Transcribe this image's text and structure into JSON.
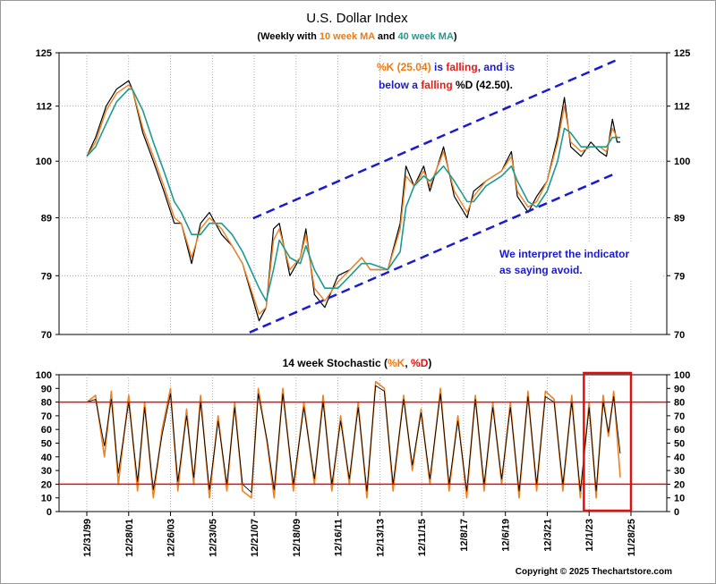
{
  "chart_data": [
    {
      "type": "line",
      "title": "U.S. Dollar Index",
      "subtitle": {
        "prefix": "(Weekly with ",
        "ma10": "10 week MA",
        "mid": " and ",
        "ma40": "40 week MA",
        "suffix": ")"
      },
      "y_scale": "log",
      "ylim": [
        70,
        125
      ],
      "y_ticks": [
        70,
        79,
        89,
        100,
        112,
        125
      ],
      "series": [
        {
          "role": "price",
          "color": "#000000",
          "x": [
            "1999-12-31",
            "2000-06-01",
            "2000-12-01",
            "2001-06-01",
            "2001-12-28",
            "2002-03-01",
            "2002-09-01",
            "2003-03-01",
            "2003-09-01",
            "2004-03-01",
            "2004-07-01",
            "2004-12-26",
            "2005-06-01",
            "2005-11-01",
            "2006-06-01",
            "2006-12-01",
            "2007-06-01",
            "2008-03-15",
            "2008-07-15",
            "2008-11-20",
            "2009-03-01",
            "2009-09-01",
            "2010-03-01",
            "2010-06-07",
            "2010-11-01",
            "2011-05-01",
            "2011-12-16",
            "2012-07-15",
            "2013-02-01",
            "2013-07-01",
            "2014-05-01",
            "2014-12-01",
            "2015-03-13",
            "2015-08-01",
            "2016-01-15",
            "2016-05-01",
            "2016-12-25",
            "2017-07-01",
            "2018-02-10",
            "2018-06-01",
            "2019-01-01",
            "2019-09-30",
            "2020-03-20",
            "2020-07-01",
            "2021-01-05",
            "2021-06-01",
            "2021-12-01",
            "2022-06-01",
            "2022-09-27",
            "2023-01-15",
            "2023-07-15",
            "2024-01-01",
            "2024-06-01",
            "2024-09-27",
            "2025-01-10",
            "2025-04-01",
            "2025-05-25"
          ],
          "values": [
            101,
            105,
            112,
            116,
            118,
            116,
            106,
            100,
            94,
            88,
            88,
            81,
            88,
            90,
            86,
            84,
            81,
            72,
            74,
            87,
            88,
            79,
            82,
            87,
            76,
            74,
            79,
            80,
            82,
            80,
            80,
            88,
            99,
            95,
            99,
            94,
            103,
            93,
            89,
            94,
            96,
            98,
            102,
            93,
            90,
            93,
            96,
            105,
            114,
            103,
            101,
            104,
            102,
            101,
            109,
            104,
            104
          ]
        },
        {
          "role": "ma10",
          "color": "#f08020",
          "x": [
            "1999-12-31",
            "2000-06-01",
            "2000-12-01",
            "2001-06-01",
            "2001-12-28",
            "2002-03-01",
            "2002-09-01",
            "2003-03-01",
            "2003-09-01",
            "2004-03-01",
            "2004-07-01",
            "2004-12-26",
            "2005-06-01",
            "2005-11-01",
            "2006-06-01",
            "2006-12-01",
            "2007-06-01",
            "2008-03-15",
            "2008-07-15",
            "2008-11-20",
            "2009-03-01",
            "2009-09-01",
            "2010-03-01",
            "2010-06-07",
            "2010-11-01",
            "2011-05-01",
            "2011-12-16",
            "2012-07-15",
            "2013-02-01",
            "2013-07-01",
            "2014-05-01",
            "2014-12-01",
            "2015-03-13",
            "2015-08-01",
            "2016-01-15",
            "2016-05-01",
            "2016-12-25",
            "2017-07-01",
            "2018-02-10",
            "2018-06-01",
            "2019-01-01",
            "2019-09-30",
            "2020-03-20",
            "2020-07-01",
            "2021-01-05",
            "2021-06-01",
            "2021-12-01",
            "2022-06-01",
            "2022-09-27",
            "2023-01-15",
            "2023-07-15",
            "2024-01-01",
            "2024-06-01",
            "2024-09-27",
            "2025-01-10",
            "2025-04-01",
            "2025-05-25"
          ],
          "values": [
            101,
            104,
            111,
            115,
            117,
            116,
            107,
            101,
            95,
            89,
            88,
            82,
            87,
            89,
            87,
            84,
            81,
            73,
            74,
            85,
            87,
            80,
            82,
            86,
            77,
            75,
            78,
            80,
            82,
            80,
            80,
            87,
            97,
            95,
            98,
            95,
            102,
            94,
            90,
            93,
            96,
            98,
            101,
            94,
            91,
            92,
            96,
            104,
            112,
            104,
            102,
            103,
            103,
            102,
            107,
            105,
            105
          ]
        },
        {
          "role": "ma40",
          "color": "#1f9a8f",
          "x": [
            "1999-12-31",
            "2000-06-01",
            "2000-12-01",
            "2001-06-01",
            "2001-12-28",
            "2002-03-01",
            "2002-09-01",
            "2003-03-01",
            "2003-09-01",
            "2004-03-01",
            "2004-07-01",
            "2004-12-26",
            "2005-06-01",
            "2005-11-01",
            "2006-06-01",
            "2006-12-01",
            "2007-06-01",
            "2008-03-15",
            "2008-07-15",
            "2008-11-20",
            "2009-03-01",
            "2009-09-01",
            "2010-03-01",
            "2010-06-07",
            "2010-11-01",
            "2011-05-01",
            "2011-12-16",
            "2012-07-15",
            "2013-02-01",
            "2013-07-01",
            "2014-05-01",
            "2014-12-01",
            "2015-03-13",
            "2015-08-01",
            "2016-01-15",
            "2016-05-01",
            "2016-12-25",
            "2017-07-01",
            "2018-02-10",
            "2018-06-01",
            "2019-01-01",
            "2019-09-30",
            "2020-03-20",
            "2020-07-01",
            "2021-01-05",
            "2021-06-01",
            "2021-12-01",
            "2022-06-01",
            "2022-09-27",
            "2023-01-15",
            "2023-07-15",
            "2024-01-01",
            "2024-06-01",
            "2024-09-27",
            "2025-01-10",
            "2025-04-01",
            "2025-05-25"
          ],
          "values": [
            101,
            103,
            108,
            113,
            116,
            116,
            111,
            104,
            98,
            92,
            90,
            86,
            86,
            88,
            88,
            86,
            83,
            77,
            75,
            80,
            85,
            82,
            81,
            84,
            80,
            77,
            77,
            79,
            81,
            81,
            80,
            83,
            91,
            95,
            97,
            96,
            99,
            96,
            92,
            92,
            95,
            97,
            99,
            96,
            92,
            91,
            94,
            100,
            107,
            106,
            103,
            103,
            103,
            103,
            105,
            105,
            105
          ]
        }
      ],
      "trend_lines": [
        {
          "x": [
            "2007-10-01",
            "2025-03-01"
          ],
          "values": [
            70.3,
            97.5
          ]
        },
        {
          "x": [
            "2007-12-01",
            "2025-03-01"
          ],
          "values": [
            88.9,
            123
          ]
        }
      ],
      "annotations": {
        "note1_line1": [
          {
            "text": "%K (25.04)",
            "color": "#f07a10"
          },
          {
            "text": " is ",
            "color": "#1a1ad0"
          },
          {
            "text": "falling",
            "color": "#e0201a"
          },
          {
            "text": ", and is",
            "color": "#1a1ad0"
          }
        ],
        "note1_line2": [
          {
            "text": "below a ",
            "color": "#1a1ad0"
          },
          {
            "text": "falling",
            "color": "#e0201a"
          },
          {
            "text": " %D (42.50).",
            "color": "#000000"
          }
        ],
        "note2_line1": "We interpret the indicator",
        "note2_line2": "as saying avoid."
      }
    },
    {
      "type": "line",
      "title": {
        "prefix": "14 week Stochastic (",
        "k": "%K",
        "sep": ", ",
        "d": "%D",
        "suffix": ")"
      },
      "ylim": [
        0,
        100
      ],
      "y_ticks": [
        0,
        10,
        20,
        30,
        40,
        50,
        60,
        70,
        80,
        90,
        100
      ],
      "reference_lines": [
        20,
        80
      ],
      "reference_color": "#e01010",
      "highlight_box_x": [
        "2023-09-01",
        "2025-11-28"
      ],
      "highlight_color": "#e01010",
      "series": [
        {
          "role": "k",
          "color": "#f08020",
          "x": [
            "1999-12-31",
            "2000-06-01",
            "2000-11-01",
            "2001-03-01",
            "2001-07-01",
            "2001-12-28",
            "2002-06-01",
            "2002-10-01",
            "2003-03-01",
            "2003-08-01",
            "2003-12-26",
            "2004-05-01",
            "2004-10-01",
            "2005-02-01",
            "2005-06-01",
            "2005-11-01",
            "2006-04-01",
            "2006-09-01",
            "2007-01-15",
            "2007-06-01",
            "2007-11-01",
            "2008-03-01",
            "2008-08-01",
            "2008-12-01",
            "2009-05-01",
            "2009-11-01",
            "2010-05-01",
            "2010-11-01",
            "2011-04-01",
            "2011-09-01",
            "2012-02-01",
            "2012-07-01",
            "2012-12-01",
            "2013-05-01",
            "2013-10-01",
            "2014-03-01",
            "2014-08-01",
            "2015-02-01",
            "2015-07-01",
            "2015-12-01",
            "2016-05-01",
            "2016-11-01",
            "2017-04-01",
            "2017-09-01",
            "2018-02-01",
            "2018-07-01",
            "2018-12-01",
            "2019-05-01",
            "2019-10-01",
            "2020-03-01",
            "2020-08-01",
            "2021-01-01",
            "2021-06-01",
            "2021-11-01",
            "2022-04-01",
            "2022-09-01",
            "2023-02-01",
            "2023-07-01",
            "2023-12-01",
            "2024-04-01",
            "2024-08-01",
            "2024-11-01",
            "2025-02-01",
            "2025-05-25"
          ],
          "values": [
            80,
            85,
            40,
            88,
            20,
            85,
            15,
            80,
            10,
            60,
            90,
            15,
            75,
            20,
            85,
            10,
            70,
            15,
            80,
            15,
            10,
            90,
            50,
            10,
            90,
            15,
            80,
            20,
            85,
            15,
            70,
            20,
            80,
            10,
            95,
            90,
            15,
            85,
            30,
            75,
            20,
            90,
            15,
            70,
            10,
            85,
            15,
            80,
            20,
            80,
            10,
            88,
            15,
            88,
            82,
            15,
            85,
            10,
            80,
            10,
            85,
            55,
            88,
            25
          ]
        },
        {
          "role": "d",
          "color": "#000000",
          "x": [
            "1999-12-31",
            "2000-06-01",
            "2000-11-01",
            "2001-03-01",
            "2001-07-01",
            "2001-12-28",
            "2002-06-01",
            "2002-10-01",
            "2003-03-01",
            "2003-08-01",
            "2003-12-26",
            "2004-05-01",
            "2004-10-01",
            "2005-02-01",
            "2005-06-01",
            "2005-11-01",
            "2006-04-01",
            "2006-09-01",
            "2007-01-15",
            "2007-06-01",
            "2007-11-01",
            "2008-03-01",
            "2008-08-01",
            "2008-12-01",
            "2009-05-01",
            "2009-11-01",
            "2010-05-01",
            "2010-11-01",
            "2011-04-01",
            "2011-09-01",
            "2012-02-01",
            "2012-07-01",
            "2012-12-01",
            "2013-05-01",
            "2013-10-01",
            "2014-03-01",
            "2014-08-01",
            "2015-02-01",
            "2015-07-01",
            "2015-12-01",
            "2016-05-01",
            "2016-11-01",
            "2017-04-01",
            "2017-09-01",
            "2018-02-01",
            "2018-07-01",
            "2018-12-01",
            "2019-05-01",
            "2019-10-01",
            "2020-03-01",
            "2020-08-01",
            "2021-01-01",
            "2021-06-01",
            "2021-11-01",
            "2022-04-01",
            "2022-09-01",
            "2023-02-01",
            "2023-07-01",
            "2023-12-01",
            "2024-04-01",
            "2024-08-01",
            "2024-11-01",
            "2025-02-01",
            "2025-05-25"
          ],
          "values": [
            80,
            82,
            48,
            82,
            28,
            80,
            22,
            76,
            16,
            56,
            86,
            22,
            70,
            25,
            80,
            16,
            66,
            20,
            76,
            20,
            14,
            86,
            52,
            16,
            86,
            20,
            76,
            24,
            80,
            20,
            66,
            24,
            76,
            15,
            92,
            88,
            20,
            82,
            34,
            72,
            24,
            86,
            20,
            66,
            15,
            82,
            20,
            76,
            24,
            76,
            15,
            84,
            20,
            84,
            80,
            20,
            80,
            15,
            76,
            15,
            80,
            58,
            84,
            42.5
          ]
        }
      ]
    }
  ],
  "x_axis": {
    "tick_labels": [
      "12/31/99",
      "12/28/01",
      "12/26/03",
      "12/23/05",
      "12/21/07",
      "12/18/09",
      "12/16/11",
      "12/13/13",
      "12/11/15",
      "12/8/17",
      "12/6/19",
      "12/3/21",
      "12/1/23",
      "11/28/25"
    ],
    "tick_dates": [
      "1999-12-31",
      "2001-12-28",
      "2003-12-26",
      "2005-12-23",
      "2007-12-21",
      "2009-12-18",
      "2011-12-16",
      "2013-12-13",
      "2015-12-11",
      "2017-12-08",
      "2019-12-06",
      "2021-12-03",
      "2023-12-01",
      "2025-11-28"
    ]
  },
  "footer": {
    "copyright": "Copyright © 2025 Thechartstore.com"
  }
}
